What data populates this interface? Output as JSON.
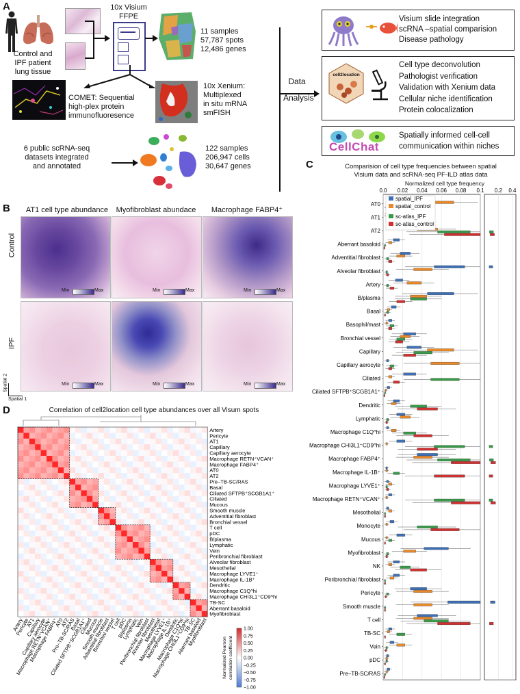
{
  "panel_a": {
    "label": "A",
    "tissue_text": [
      "Control and",
      "IPF patient",
      "lung tissue"
    ],
    "visium_title": [
      "10x Visium",
      "FFPE"
    ],
    "visium_stats": [
      "11 samples",
      "57,787 spots",
      "12,486 genes"
    ],
    "comet_text": [
      "COMET: Sequential",
      "high-plex protein",
      "immunofluoresence"
    ],
    "xenium_text": [
      "10x Xenium:",
      "Multiplexed",
      "in situ mRNA",
      "smFISH"
    ],
    "scrna_text": [
      "6 public scRNA-seq",
      "datasets integrated",
      "and annotated"
    ],
    "scrna_stats": [
      "122 samples",
      "206,947 cells",
      "30,647 genes"
    ],
    "data_analysis": [
      "Data",
      "Analysis"
    ],
    "box1": [
      "Visium slide integration",
      "scRNA –spatial comparision",
      "Disease pathology"
    ],
    "box2": [
      "Cell type deconvolution",
      "Pathologist verification",
      "Validation with Xenium data",
      "Cellular niche identification",
      "Protein colocalization"
    ],
    "box2_logo": "cell2location",
    "box3": [
      "Spatially informed cell-cell",
      "communication within niches"
    ],
    "box3_logo": "CellChat"
  },
  "panel_b": {
    "label": "B",
    "columns": [
      "AT1 cell type abundance",
      "Myofibroblast abundace",
      "Macrophage FABP4⁺"
    ],
    "rows": [
      "Control",
      "IPF"
    ],
    "scale_min": "Min",
    "scale_max": "Max",
    "axis_y": "Spatial 2",
    "axis_x": "Spatial 1"
  },
  "panel_c": {
    "label": "C",
    "title": [
      "Comparision of cell type frequencies between spatial",
      "Visium data and scRNA-seq PF-ILD atlas data"
    ],
    "xaxis_title": "Normalized cell type frequency",
    "ticks_main": [
      "0.0",
      "0.02",
      "0.04",
      "0.06",
      "0.08",
      "0.1"
    ],
    "ticks_broken": [
      "0.2",
      "0.4"
    ],
    "legend": [
      {
        "name": "spatial_IPF",
        "color": "#3f70b5"
      },
      {
        "name": "spatial_control",
        "color": "#e8892a"
      },
      {
        "name": "sc-atlas_IPF",
        "color": "#3a9a4a"
      },
      {
        "name": "sc-atlas_control",
        "color": "#cf3030"
      }
    ],
    "categories": [
      "AT0",
      "AT1",
      "AT2",
      "Aberrant basaloid",
      "Adventitial fibroblast",
      "Alveolar fibroblast",
      "Artery",
      "B/plasma",
      "Basal",
      "Basophil/mast",
      "Bronchial vessel",
      "Capillary",
      "Capillary aerocyte",
      "Ciliated",
      "Ciliated SFTPB⁺SCGB1A1⁺",
      "Dendritic",
      "Lymphatic",
      "Macrophage C1Q^hi",
      "Macrophage CHI3L1⁺CD9^hi",
      "Macrophage FABP4⁺",
      "Macrophage IL-1B⁺",
      "Macrophage LYVE1⁺",
      "Macrophage RETN⁺VCAN⁺",
      "Mesothelial",
      "Monocyte",
      "Mucous",
      "Myofibroblast",
      "NK",
      "Peribronchial fibroblast",
      "Pericyte",
      "Smooth muscle",
      "T cell",
      "TB-SC",
      "Vein",
      "pDC",
      "Pre–TB-SC/RAS"
    ]
  },
  "panel_d": {
    "label": "D",
    "title": "Correlation of cell2location cell type abundances over all Visum spots",
    "row_labels": [
      "Artery",
      "Pericyte",
      "AT1",
      "Capillary",
      "Capillary aerocyte",
      "Macrophage RETN⁺VCAN⁺",
      "Macrophage FABP4⁺",
      "AT0",
      "AT2",
      "Pre–TB-SC/RAS",
      "Basal",
      "Ciliated SFTPB⁺SCGB1A1⁺",
      "Ciliated",
      "Mucous",
      "Smooth muscle",
      "Adventitial fibroblast",
      "Bronchial vessel",
      "T cell",
      "pDC",
      "B/plasma",
      "Lymphatic",
      "Vein",
      "Peribronchial fibroblast",
      "Alveolar fibroblast",
      "Mesothelial",
      "Macrophage LYVE1⁺",
      "Macrophage IL-1B⁺",
      "Dendritic",
      "Macrophage C1Q^hi",
      "Macrophage CHI3L1⁺CD9^hi",
      "TB-SC",
      "Aberrant basaloid",
      "Myofibroblast"
    ],
    "colorbar_ticks": [
      "1.00",
      "0.75",
      "0.50",
      "0.25",
      "0.00",
      "−0.25",
      "−0.50",
      "−0.75",
      "−1.00"
    ],
    "colorbar_label": [
      "Normalized Pearson",
      "correlation coefficient"
    ]
  },
  "chart_data": {
    "type": "bar",
    "title": "Comparision of cell type frequencies between spatial Visium data and scRNA-seq PF-ILD atlas data",
    "xlabel": "Normalized cell type frequency",
    "xlim": [
      0,
      0.1
    ],
    "categories": [
      "AT0",
      "AT1",
      "AT2",
      "Aberrant basaloid",
      "Adventitial fibroblast",
      "Alveolar fibroblast",
      "Artery",
      "B/plasma",
      "Basal",
      "Basophil/mast",
      "Bronchial vessel",
      "Capillary",
      "Capillary aerocyte",
      "Ciliated",
      "Ciliated SFTPB⁺SCGB1A1⁺",
      "Dendritic",
      "Lymphatic",
      "Macrophage C1Q^hi",
      "Macrophage CHI3L1⁺CD9^hi",
      "Macrophage FABP4⁺",
      "Macrophage IL-1B⁺",
      "Macrophage LYVE1⁺",
      "Macrophage RETN⁺VCAN⁺",
      "Mesothelial",
      "Monocyte",
      "Mucous",
      "Myofibroblast",
      "NK",
      "Peribronchial fibroblast",
      "Pericyte",
      "Smooth muscle",
      "T cell",
      "TB-SC",
      "Vein",
      "pDC",
      "Pre–TB-SC/RAS"
    ],
    "series": [
      {
        "name": "spatial_IPF",
        "values": [
          0.025,
          0.005,
          0.03,
          0.015,
          0.025,
          0.075,
          0.018,
          0.065,
          0.012,
          0.008,
          0.03,
          0.035,
          0.005,
          0.03,
          0.006,
          0.015,
          0.02,
          0.005,
          0.02,
          0.05,
          0.004,
          0.005,
          0.008,
          0.005,
          0.01,
          0.02,
          0.06,
          0.015,
          0.015,
          0.04,
          0.095,
          0.05,
          0.008,
          0.01,
          0.005,
          0.006
        ]
      },
      {
        "name": "spatial_control",
        "values": [
          0.065,
          0.004,
          0.05,
          0.008,
          0.02,
          0.045,
          0.035,
          0.04,
          0.006,
          0.004,
          0.025,
          0.065,
          0.07,
          0.008,
          0.003,
          0.012,
          0.025,
          0.012,
          0.004,
          0.045,
          0.004,
          0.008,
          0.004,
          0.008,
          0.004,
          0.004,
          0.03,
          0.008,
          0.01,
          0.045,
          0.045,
          0.045,
          0.006,
          0.02,
          0.004,
          0.004
        ]
      },
      {
        "name": "sc-atlas_IPF",
        "values": [
          0.008,
          0.01,
          0.08,
          0.002,
          0.005,
          0.004,
          0.005,
          0.04,
          0.005,
          0.01,
          0.02,
          0.045,
          0.01,
          0.07,
          0.002,
          0.04,
          0.005,
          0.03,
          0.075,
          0.08,
          0.015,
          0.004,
          0.075,
          0.002,
          0.05,
          0.008,
          0.005,
          0.025,
          0.002,
          0.005,
          0.002,
          0.06,
          0.02,
          0.004,
          0.004,
          0.002
        ]
      },
      {
        "name": "sc-atlas_control",
        "values": [
          0.004,
          0.008,
          0.09,
          0.001,
          0.008,
          0.005,
          0.01,
          0.02,
          0.002,
          0.008,
          0.018,
          0.03,
          0.008,
          0.015,
          0.001,
          0.05,
          0.004,
          0.045,
          0.05,
          0.1,
          0.075,
          0.005,
          0.1,
          0.002,
          0.07,
          0.002,
          0.004,
          0.04,
          0.002,
          0.003,
          0.002,
          0.08,
          0.002,
          0.003,
          0.002,
          0.001
        ]
      }
    ]
  }
}
